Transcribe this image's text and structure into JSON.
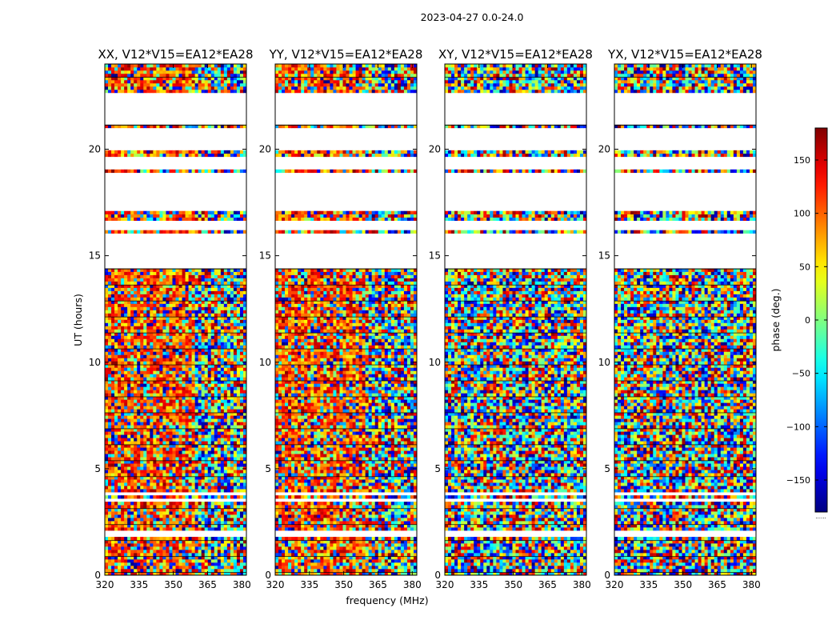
{
  "figure": {
    "suptitle": "2023-04-27 0.0-24.0"
  },
  "chart_data": {
    "type": "heatmap",
    "suptitle": "2023-04-27 0.0-24.0",
    "ylabel": "UT (hours)",
    "xlabel": "frequency (MHz)",
    "xlim": [
      320,
      382
    ],
    "ylim": [
      0,
      24
    ],
    "xticks": [
      320,
      335,
      350,
      365,
      380
    ],
    "yticks": [
      0,
      5,
      10,
      15,
      20
    ],
    "panels": [
      {
        "title": "XX, V12*V15=EA12*EA28",
        "kind": "parallel"
      },
      {
        "title": "YY, V12*V15=EA12*EA28",
        "kind": "parallel"
      },
      {
        "title": "XY, V12*V15=EA12*EA28",
        "kind": "cross"
      },
      {
        "title": "YX, V12*V15=EA12*EA28",
        "kind": "cross"
      }
    ],
    "colorbar": {
      "label": "phase (deg.)",
      "range": [
        -180,
        180
      ],
      "ticks": [
        150,
        100,
        50,
        0,
        -50,
        -100,
        -150
      ],
      "colormap": "jet",
      "under_text": "......"
    },
    "flagged_ut_ranges": [
      [
        19.1,
        19.6
      ],
      [
        20.0,
        20.95
      ],
      [
        21.08,
        22.6
      ],
      [
        17.05,
        18.95
      ],
      [
        16.15,
        16.65
      ],
      [
        14.45,
        16.05
      ],
      [
        3.4,
        3.55
      ],
      [
        3.75,
        3.85
      ],
      [
        1.85,
        1.95
      ],
      [
        2.0,
        2.05
      ],
      [
        0.0,
        0.05
      ],
      [
        23.95,
        24.0
      ]
    ]
  }
}
